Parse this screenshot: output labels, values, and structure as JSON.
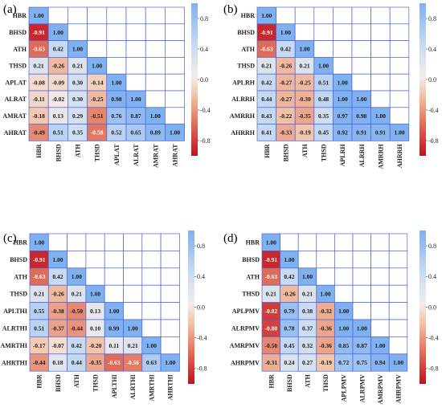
{
  "colors": {
    "grid_line": "#4a63d8",
    "scale_negative_end": "#c0111f",
    "scale_mid": "#fbf1ee",
    "scale_positive_end": "#7fb0f0"
  },
  "colorbar": {
    "ticks": [
      "0.8",
      "0.4",
      "0.0",
      "-0.4",
      "-0.8"
    ]
  },
  "chart_data": [
    {
      "type": "heatmap",
      "panel": "(a)",
      "vmin": -1,
      "vmax": 1,
      "rows": [
        "HBR",
        "BHSD",
        "ATH",
        "THSD",
        "APLAT",
        "ALRAT",
        "AMRAT",
        "AHRAT"
      ],
      "cols": [
        "HBR",
        "BHSD",
        "ATH",
        "THSD",
        "APLAT",
        "ALRAT",
        "AMRAT",
        "AHRAT"
      ],
      "values": [
        [
          "1.00"
        ],
        [
          "-0.91",
          "1.00"
        ],
        [
          "-0.63",
          "0.42",
          "1.00"
        ],
        [
          "0.21",
          "-0.26",
          "0.21",
          "1.00"
        ],
        [
          "-0.08",
          "-0.09",
          "0.30",
          "-0.14",
          "1.00"
        ],
        [
          "-0.11",
          "-0.02",
          "0.30",
          "-0.25",
          "0.98",
          "1.00"
        ],
        [
          "-0.18",
          "0.13",
          "0.29",
          "-0.51",
          "0.76",
          "0.87",
          "1.00"
        ],
        [
          "-0.49",
          "0.51",
          "0.35",
          "-0.58",
          "0.52",
          "0.65",
          "0.89",
          "1.00"
        ]
      ]
    },
    {
      "type": "heatmap",
      "panel": "(b)",
      "vmin": -1,
      "vmax": 1,
      "rows": [
        "HBR",
        "BHSD",
        "ATH",
        "THSD",
        "APLRH",
        "ALRRH",
        "AMRRH",
        "AHRRH"
      ],
      "cols": [
        "HBR",
        "BHSD",
        "ATH",
        "THSD",
        "APLRH",
        "ALRRH",
        "AMRRH",
        "AHRRH"
      ],
      "values": [
        [
          "1.00"
        ],
        [
          "-0.91",
          "1.00"
        ],
        [
          "-0.63",
          "0.42",
          "1.00"
        ],
        [
          "0.21",
          "-0.26",
          "0.21",
          "1.00"
        ],
        [
          "0.42",
          "-0.27",
          "-0.25",
          "0.51",
          "1.00"
        ],
        [
          "0.44",
          "-0.27",
          "-0.30",
          "0.48",
          "1.00",
          "1.00"
        ],
        [
          "0.43",
          "-0.22",
          "-0.35",
          "0.35",
          "0.97",
          "0.98",
          "1.00"
        ],
        [
          "0.41",
          "-0.33",
          "-0.19",
          "0.45",
          "0.92",
          "0.91",
          "0.91",
          "1.00"
        ]
      ]
    },
    {
      "type": "heatmap",
      "panel": "(c)",
      "vmin": -1,
      "vmax": 1,
      "rows": [
        "HBR",
        "BHSD",
        "ATH",
        "THSD",
        "APLTHI",
        "ALRTHI",
        "AMRTHI",
        "AHRTHI"
      ],
      "cols": [
        "HBR",
        "BHSD",
        "ATH",
        "THSD",
        "APLTHI",
        "ALRTHI",
        "AMRTHI",
        "AHRTHI"
      ],
      "values": [
        [
          "1.00"
        ],
        [
          "-0.91",
          "1.00"
        ],
        [
          "-0.63",
          "0.42",
          "1.00"
        ],
        [
          "0.21",
          "-0.26",
          "0.21",
          "1.00"
        ],
        [
          "0.55",
          "-0.38",
          "-0.50",
          "0.13",
          "1.00"
        ],
        [
          "0.51",
          "-0.37",
          "-0.44",
          "0.10",
          "0.99",
          "1.00"
        ],
        [
          "-0.17",
          "-0.07",
          "0.42",
          "-0.20",
          "0.11",
          "0.21",
          "1.00"
        ],
        [
          "-0.44",
          "0.18",
          "0.44",
          "-0.35",
          "-0.63",
          "-0.56",
          "0.63",
          "1.00"
        ]
      ]
    },
    {
      "type": "heatmap",
      "panel": "(d)",
      "vmin": -1,
      "vmax": 1,
      "rows": [
        "HBR",
        "BHSD",
        "ATH",
        "THSD",
        "APLPMV",
        "ALRPMV",
        "AMRPMV",
        "AHRPMV"
      ],
      "cols": [
        "HBR",
        "BHSD",
        "ATH",
        "THSD",
        "APLPMV",
        "ALRPMV",
        "AMRPMV",
        "AHRPMV"
      ],
      "values": [
        [
          "1.00"
        ],
        [
          "-0.91",
          "1.00"
        ],
        [
          "-0.63",
          "0.42",
          "1.00"
        ],
        [
          "0.21",
          "-0.26",
          "0.21",
          "1.00"
        ],
        [
          "-0.82",
          "0.79",
          "0.38",
          "-0.32",
          "1.00"
        ],
        [
          "-0.80",
          "0.78",
          "0.37",
          "-0.36",
          "1.00",
          "1.00"
        ],
        [
          "-0.50",
          "0.45",
          "0.32",
          "-0.36",
          "0.85",
          "0.87",
          "1.00"
        ],
        [
          "-0.31",
          "0.24",
          "0.27",
          "-0.19",
          "0.72",
          "0.75",
          "0.94",
          "1.00"
        ]
      ]
    }
  ]
}
